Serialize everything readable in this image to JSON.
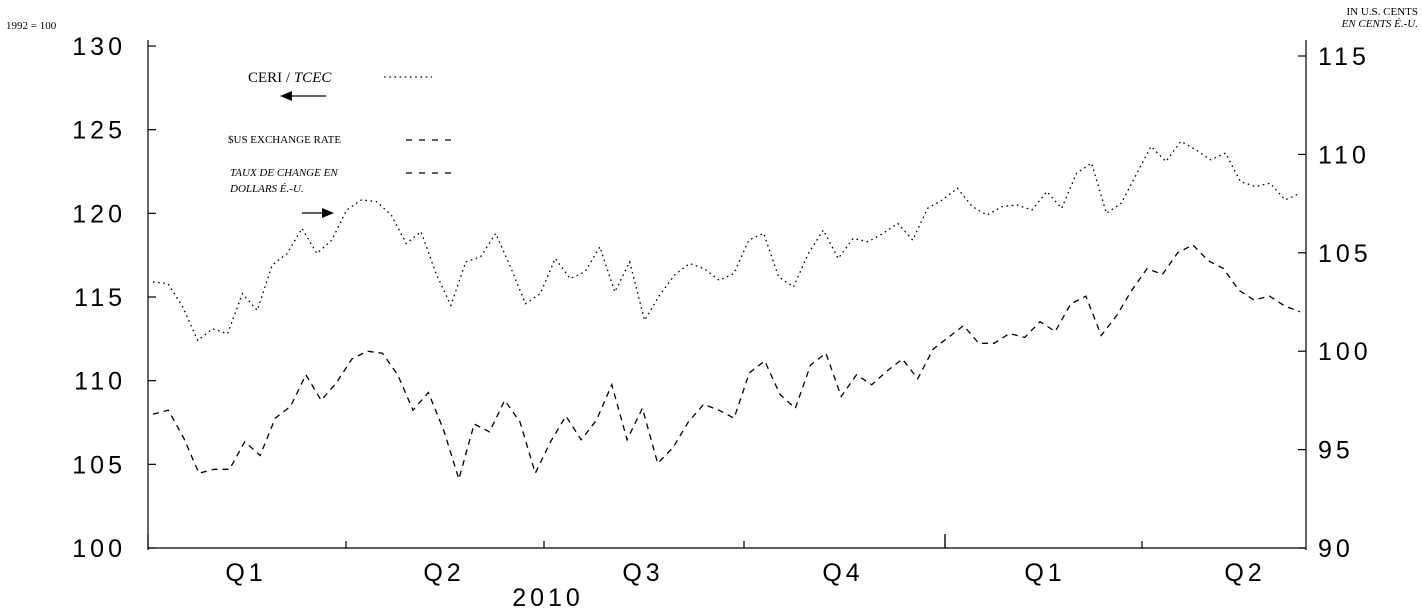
{
  "chart_data": {
    "type": "line",
    "left_axis": {
      "unit_label": "1992 = 100",
      "ylim": [
        100,
        130
      ],
      "ticks": [
        "100",
        "105",
        "110",
        "115",
        "120",
        "125",
        "130"
      ]
    },
    "right_axis": {
      "unit_label_en": "IN U.S. CENTS",
      "unit_label_fr": "EN CENTS É.-U.",
      "ylim": [
        90,
        115
      ],
      "ticks": [
        "90",
        "95",
        "100",
        "105",
        "110",
        "115"
      ]
    },
    "x_axis": {
      "quarter_labels": [
        "Q1",
        "Q2",
        "Q3",
        "Q4",
        "Q1",
        "Q2"
      ],
      "year_label": "2010"
    },
    "legend": {
      "ceri_label": "CERI / ",
      "ceri_label_italic": "TCEC",
      "us_rate_label": "$US EXCHANGE RATE",
      "us_rate_fr_line1": "TAUX DE CHANGE EN",
      "us_rate_fr_line2": "DOLLARS É.-U."
    },
    "series": [
      {
        "id": "ceri",
        "axis": "left",
        "style": "dotted",
        "values": [
          115.9,
          115.8,
          114.4,
          112.4,
          113.1,
          112.8,
          115.2,
          114.2,
          116.9,
          117.6,
          119.1,
          117.6,
          118.4,
          120.2,
          120.8,
          120.7,
          119.9,
          118.2,
          118.9,
          116.4,
          114.5,
          117.1,
          117.4,
          118.8,
          116.8,
          114.6,
          115.2,
          117.3,
          116.1,
          116.5,
          118.0,
          115.3,
          117.1,
          113.6,
          115.1,
          116.3,
          117.0,
          116.7,
          116.0,
          116.4,
          118.4,
          118.8,
          116.2,
          115.6,
          117.6,
          119.0,
          117.3,
          118.5,
          118.3,
          118.8,
          119.4,
          118.4,
          120.3,
          120.8,
          121.5,
          120.4,
          119.9,
          120.4,
          120.5,
          120.2,
          121.3,
          120.3,
          122.4,
          123.0,
          120.0,
          120.6,
          122.3,
          124.0,
          123.1,
          124.3,
          123.8,
          123.2,
          123.6,
          121.9,
          121.6,
          121.8,
          120.8,
          121.2
        ]
      },
      {
        "id": "us_exchange_rate",
        "axis": "right",
        "style": "dashed",
        "values": [
          96.8,
          97.0,
          95.6,
          93.8,
          94.0,
          94.0,
          95.4,
          94.7,
          96.6,
          97.2,
          98.8,
          97.5,
          98.4,
          99.6,
          100.0,
          99.9,
          98.8,
          97.0,
          97.9,
          96.0,
          93.5,
          96.3,
          95.9,
          97.5,
          96.4,
          93.8,
          95.4,
          96.7,
          95.5,
          96.5,
          98.3,
          95.5,
          97.1,
          94.3,
          95.1,
          96.4,
          97.3,
          97.0,
          96.6,
          98.9,
          99.5,
          97.8,
          97.1,
          99.3,
          99.9,
          97.7,
          98.8,
          98.3,
          99.0,
          99.6,
          98.6,
          100.1,
          100.7,
          101.3,
          100.4,
          100.4,
          100.9,
          100.7,
          101.5,
          101.0,
          102.4,
          102.8,
          100.8,
          101.8,
          103.1,
          104.2,
          103.9,
          105.0,
          105.4,
          104.6,
          104.2,
          103.1,
          102.6,
          102.8,
          102.3,
          102.0
        ]
      }
    ],
    "colors": {
      "line": "#000000",
      "background": "#ffffff"
    }
  }
}
